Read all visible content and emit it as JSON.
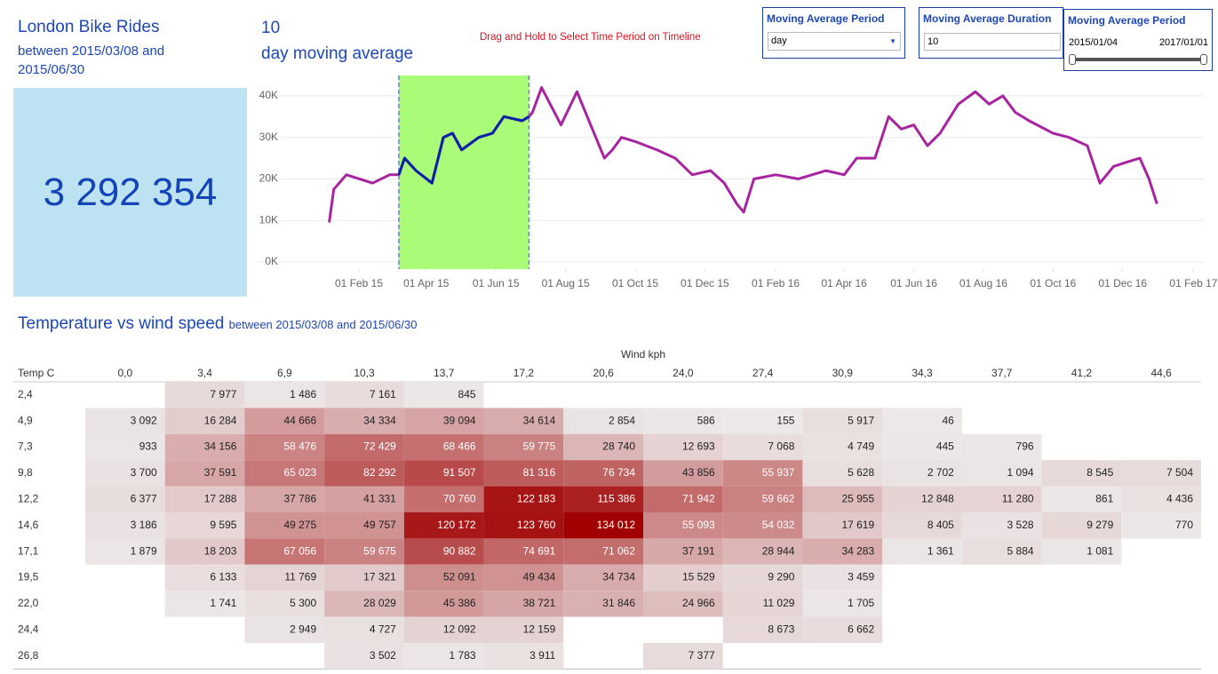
{
  "header": {
    "title": "London Bike Rides",
    "subtitle": "between 2015/03/08 and 2015/06/30",
    "total_rides": "3 292 354",
    "period_count": "10",
    "period_text": "day moving average",
    "instruction": "Drag and Hold to Select Time Period on Timeline"
  },
  "controls": {
    "period": {
      "title": "Moving Average Period",
      "value": "day"
    },
    "duration": {
      "title": "Moving Average Duration",
      "value": "10"
    },
    "range": {
      "title": "Moving Average Period",
      "start": "2015/01/04",
      "end": "2017/01/01"
    }
  },
  "heatmap_header": {
    "title": "Temperature vs wind speed",
    "subtitle": "between 2015/03/08 and 2015/06/30"
  },
  "chart_data": [
    {
      "type": "line",
      "color": "#a8239f",
      "x": [
        "2015-01-06",
        "2015-01-10",
        "2015-01-21",
        "2015-02-13",
        "2015-02-28",
        "2015-03-08",
        "2015-03-13",
        "2015-03-23",
        "2015-04-06",
        "2015-04-16",
        "2015-04-24",
        "2015-05-02",
        "2015-05-17",
        "2015-05-29",
        "2015-06-08",
        "2015-06-24",
        "2015-06-30",
        "2015-07-03",
        "2015-07-11",
        "2015-07-28",
        "2015-08-11",
        "2015-08-23",
        "2015-09-04",
        "2015-09-11",
        "2015-09-19",
        "2015-10-01",
        "2015-10-20",
        "2015-11-05",
        "2015-11-20",
        "2015-12-06",
        "2015-12-18",
        "2015-12-29",
        "2016-01-04",
        "2016-01-13",
        "2016-02-01",
        "2016-02-21",
        "2016-03-16",
        "2016-04-01",
        "2016-04-12",
        "2016-04-28",
        "2016-05-10",
        "2016-05-21",
        "2016-06-01",
        "2016-06-13",
        "2016-06-24",
        "2016-07-10",
        "2016-07-25",
        "2016-08-06",
        "2016-08-18",
        "2016-08-29",
        "2016-09-10",
        "2016-10-01",
        "2016-10-15",
        "2016-10-31",
        "2016-11-11",
        "2016-11-23",
        "2016-12-04",
        "2016-12-16",
        "2016-12-24",
        "2016-12-31"
      ],
      "values": [
        9500,
        17500,
        21000,
        19000,
        21000,
        21000,
        25000,
        22000,
        19000,
        30000,
        31000,
        27000,
        30000,
        31000,
        35000,
        34000,
        35000,
        36000,
        42000,
        33000,
        41000,
        33000,
        25000,
        27000,
        30000,
        29000,
        27000,
        25000,
        21000,
        22000,
        19000,
        14000,
        12000,
        20000,
        21000,
        20000,
        22000,
        21000,
        25000,
        25000,
        35000,
        32000,
        33000,
        28000,
        31000,
        38000,
        41000,
        38000,
        40000,
        36000,
        34000,
        31000,
        30000,
        28000,
        19000,
        23000,
        24000,
        25000,
        20000,
        14000
      ],
      "xlim": [
        "2014-12-28",
        "2017-02-10"
      ],
      "ylim": [
        -1700,
        44900
      ],
      "xticks": [
        {
          "value": "2015-02-01",
          "label": "01 Feb 15"
        },
        {
          "value": "2015-04-01",
          "label": "01 Apr 15"
        },
        {
          "value": "2015-06-01",
          "label": "01 Jun 15"
        },
        {
          "value": "2015-08-01",
          "label": "01 Aug 15"
        },
        {
          "value": "2015-10-01",
          "label": "01 Oct 15"
        },
        {
          "value": "2015-12-01",
          "label": "01 Dec 15"
        },
        {
          "value": "2016-02-01",
          "label": "01 Feb 16"
        },
        {
          "value": "2016-04-01",
          "label": "01 Apr 16"
        },
        {
          "value": "2016-06-01",
          "label": "01 Jun 16"
        },
        {
          "value": "2016-08-01",
          "label": "01 Aug 16"
        },
        {
          "value": "2016-10-01",
          "label": "01 Oct 16"
        },
        {
          "value": "2016-12-01",
          "label": "01 Dec 16"
        },
        {
          "value": "2017-02-01",
          "label": "01 Feb 17"
        }
      ],
      "yticks": [
        {
          "value": 0,
          "label": "0K"
        },
        {
          "value": 10000,
          "label": "10K"
        },
        {
          "value": 20000,
          "label": "20K"
        },
        {
          "value": 30000,
          "label": "30K"
        },
        {
          "value": 40000,
          "label": "40K"
        }
      ],
      "grid": true,
      "selection": {
        "start": "2015-03-08",
        "end": "2015-06-30",
        "fill": "#a9fb78",
        "line_color": "#0b22a8",
        "border": "#6a7fd6"
      }
    },
    {
      "type": "heatmap",
      "x_label": "Wind kph",
      "y_label": "Temp C",
      "color_scale": [
        "#ece8e8",
        "#a00000"
      ],
      "categories": [
        "0,0",
        "3,4",
        "6,9",
        "10,3",
        "13,7",
        "17,2",
        "20,6",
        "24,0",
        "27,4",
        "30,9",
        "34,3",
        "37,7",
        "41,2",
        "44,6"
      ],
      "rows": [
        "2,4",
        "4,9",
        "7,3",
        "9,8",
        "12,2",
        "14,6",
        "17,1",
        "19,5",
        "22,0",
        "24,4",
        "26,8"
      ],
      "values": [
        [
          null,
          7977,
          1486,
          7161,
          845,
          null,
          null,
          null,
          null,
          null,
          null,
          null,
          null,
          null
        ],
        [
          3092,
          16284,
          44666,
          34334,
          39094,
          34614,
          2854,
          586,
          155,
          5917,
          46,
          null,
          null,
          null
        ],
        [
          933,
          34156,
          58476,
          72429,
          68466,
          59775,
          28740,
          12693,
          7068,
          4749,
          445,
          796,
          null,
          null
        ],
        [
          3700,
          37591,
          65023,
          82292,
          91507,
          81316,
          76734,
          43856,
          55937,
          5628,
          2702,
          1094,
          8545,
          7504
        ],
        [
          6377,
          17288,
          37786,
          41331,
          70760,
          122183,
          115386,
          71942,
          59662,
          25955,
          12848,
          11280,
          861,
          4436
        ],
        [
          3186,
          9595,
          49275,
          49757,
          120172,
          123760,
          134012,
          55093,
          54032,
          17619,
          8405,
          3528,
          9279,
          770
        ],
        [
          1879,
          18203,
          67056,
          59675,
          90882,
          74691,
          71062,
          37191,
          28944,
          34283,
          1361,
          5884,
          1081,
          null
        ],
        [
          null,
          6133,
          11769,
          17321,
          52091,
          49434,
          34734,
          15529,
          9290,
          3459,
          null,
          null,
          null,
          null
        ],
        [
          null,
          1741,
          5300,
          28029,
          45386,
          38721,
          31846,
          24966,
          11029,
          1705,
          null,
          null,
          null,
          null
        ],
        [
          null,
          null,
          2949,
          4727,
          12092,
          12159,
          null,
          null,
          8673,
          6662,
          null,
          null,
          null,
          null
        ],
        [
          null,
          null,
          null,
          3502,
          1783,
          3911,
          null,
          7377,
          null,
          null,
          null,
          null,
          null,
          null
        ]
      ],
      "value_labels": [
        [
          null,
          "7 977",
          "1 486",
          "7 161",
          "845",
          null,
          null,
          null,
          null,
          null,
          null,
          null,
          null,
          null
        ],
        [
          "3 092",
          "16 284",
          "44 666",
          "34 334",
          "39 094",
          "34 614",
          "2 854",
          "586",
          "155",
          "5 917",
          "46",
          null,
          null,
          null
        ],
        [
          "933",
          "34 156",
          "58 476",
          "72 429",
          "68 466",
          "59 775",
          "28 740",
          "12 693",
          "7 068",
          "4 749",
          "445",
          "796",
          null,
          null
        ],
        [
          "3 700",
          "37 591",
          "65 023",
          "82 292",
          "91 507",
          "81 316",
          "76 734",
          "43 856",
          "55 937",
          "5 628",
          "2 702",
          "1 094",
          "8 545",
          "7 504"
        ],
        [
          "6 377",
          "17 288",
          "37 786",
          "41 331",
          "70 760",
          "122 183",
          "115 386",
          "71 942",
          "59 662",
          "25 955",
          "12 848",
          "11 280",
          "861",
          "4 436"
        ],
        [
          "3 186",
          "9 595",
          "49 275",
          "49 757",
          "120 172",
          "123 760",
          "134 012",
          "55 093",
          "54 032",
          "17 619",
          "8 405",
          "3 528",
          "9 279",
          "770"
        ],
        [
          "1 879",
          "18 203",
          "67 056",
          "59 675",
          "90 882",
          "74 691",
          "71 062",
          "37 191",
          "28 944",
          "34 283",
          "1 361",
          "5 884",
          "1 081",
          null
        ],
        [
          null,
          "6 133",
          "11 769",
          "17 321",
          "52 091",
          "49 434",
          "34 734",
          "15 529",
          "9 290",
          "3 459",
          null,
          null,
          null,
          null
        ],
        [
          null,
          "1 741",
          "5 300",
          "28 029",
          "45 386",
          "38 721",
          "31 846",
          "24 966",
          "11 029",
          "1 705",
          null,
          null,
          null,
          null
        ],
        [
          null,
          null,
          "2 949",
          "4 727",
          "12 092",
          "12 159",
          null,
          null,
          "8 673",
          "6 662",
          null,
          null,
          null,
          null
        ],
        [
          null,
          null,
          null,
          "3 502",
          "1 783",
          "3 911",
          null,
          "7 377",
          null,
          null,
          null,
          null,
          null,
          null
        ]
      ]
    }
  ]
}
